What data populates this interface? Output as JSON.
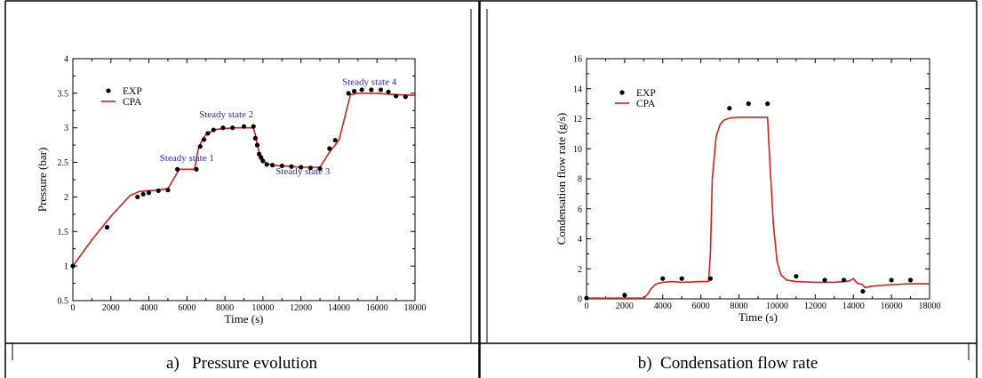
{
  "chart_data": [
    {
      "type": "line",
      "caption": "a)   Pressure evolution",
      "xlabel": "Time (s)",
      "ylabel": "Pressure (bar)",
      "xlim": [
        0,
        18000
      ],
      "ylim": [
        0.5,
        4
      ],
      "x_ticks": [
        0,
        2000,
        4000,
        6000,
        8000,
        10000,
        12000,
        14000,
        16000,
        18000
      ],
      "y_ticks": [
        0.5,
        1,
        1.5,
        2,
        2.5,
        3,
        3.5,
        4
      ],
      "y_tick_labels": [
        "0.5",
        "1",
        "1.5",
        "2",
        "2.5",
        "3",
        "3.5",
        "4"
      ],
      "grid": false,
      "legend": "top-left",
      "series": [
        {
          "name": "EXP",
          "style": "markers",
          "color": "#000000",
          "x": [
            0,
            1800,
            3400,
            3700,
            4000,
            4500,
            5000,
            5500,
            6500,
            6700,
            6900,
            7100,
            7400,
            7900,
            8400,
            9000,
            9500,
            9600,
            9700,
            9800,
            9900,
            10000,
            10200,
            10500,
            11000,
            11500,
            12000,
            12500,
            13000,
            13500,
            13800,
            14500,
            14800,
            15200,
            15700,
            16200,
            16600,
            17000,
            17500
          ],
          "y": [
            1.0,
            1.56,
            2.0,
            2.04,
            2.06,
            2.09,
            2.1,
            2.4,
            2.4,
            2.73,
            2.83,
            2.92,
            2.97,
            3.0,
            3.0,
            3.02,
            3.02,
            2.85,
            2.75,
            2.62,
            2.57,
            2.52,
            2.47,
            2.46,
            2.45,
            2.44,
            2.43,
            2.42,
            2.41,
            2.7,
            2.82,
            3.5,
            3.53,
            3.55,
            3.55,
            3.55,
            3.52,
            3.46,
            3.45
          ]
        },
        {
          "name": "CPA",
          "style": "line",
          "color": "#d42020",
          "x": [
            0,
            1000,
            2000,
            3000,
            3500,
            4000,
            4500,
            5000,
            5600,
            6000,
            6400,
            6500,
            6600,
            6800,
            7000,
            7300,
            7600,
            8000,
            8500,
            9000,
            9500,
            9600,
            9700,
            9800,
            9900,
            10000,
            10200,
            10500,
            11000,
            11500,
            12000,
            12500,
            13000,
            13500,
            14000,
            14300,
            14600,
            15000,
            16000,
            17000,
            18000
          ],
          "y": [
            1.0,
            1.38,
            1.72,
            2.02,
            2.08,
            2.09,
            2.1,
            2.12,
            2.4,
            2.4,
            2.4,
            2.55,
            2.7,
            2.82,
            2.9,
            2.95,
            2.98,
            2.99,
            3.0,
            3.0,
            3.0,
            2.9,
            2.75,
            2.65,
            2.57,
            2.52,
            2.48,
            2.46,
            2.45,
            2.44,
            2.43,
            2.43,
            2.43,
            2.65,
            2.82,
            3.15,
            3.48,
            3.5,
            3.5,
            3.48,
            3.47
          ]
        }
      ],
      "annotations": [
        {
          "text": "Steady state 1",
          "x": 6000,
          "y": 2.52,
          "anchor": "middle"
        },
        {
          "text": "Steady state 2",
          "x": 9500,
          "y": 3.15,
          "anchor": "end"
        },
        {
          "text": "Steady state 3",
          "x": 12100,
          "y": 2.33,
          "anchor": "middle"
        },
        {
          "text": "Steady state 4",
          "x": 15600,
          "y": 3.62,
          "anchor": "middle"
        }
      ]
    },
    {
      "type": "line",
      "caption": "b)  Condensation flow rate",
      "xlabel": "Time (s)",
      "ylabel": "Condensation flow rate (g/s)",
      "xlim": [
        0,
        18000
      ],
      "ylim": [
        0,
        16
      ],
      "x_ticks": [
        0,
        2000,
        4000,
        6000,
        8000,
        10000,
        12000,
        14000,
        16000,
        18000
      ],
      "y_ticks": [
        0,
        2,
        4,
        6,
        8,
        10,
        12,
        14,
        16
      ],
      "y_tick_labels": [
        "0",
        "2",
        "4",
        "6",
        "8",
        "10",
        "12",
        "14",
        "16"
      ],
      "grid": false,
      "legend": "top-left",
      "series": [
        {
          "name": "EXP",
          "style": "markers",
          "color": "#000000",
          "x": [
            0,
            2000,
            4000,
            5000,
            6500,
            7500,
            8500,
            9500,
            11000,
            12500,
            13500,
            14500,
            16000,
            17000
          ],
          "y": [
            0.05,
            0.25,
            1.35,
            1.35,
            1.35,
            12.7,
            13.0,
            13.0,
            1.5,
            1.25,
            1.25,
            0.5,
            1.25,
            1.25
          ]
        },
        {
          "name": "CPA",
          "style": "line",
          "color": "#d42020",
          "x": [
            0,
            3000,
            3200,
            3400,
            3600,
            3800,
            4000,
            4500,
            5000,
            5500,
            6000,
            6400,
            6500,
            6600,
            6800,
            7000,
            7200,
            7500,
            8000,
            9000,
            9500,
            9600,
            9800,
            10000,
            10200,
            10500,
            11000,
            12000,
            13000,
            13500,
            13800,
            14000,
            14200,
            14500,
            14600,
            15000,
            16000,
            17000,
            18000
          ],
          "y": [
            0.05,
            0.05,
            0.3,
            0.7,
            0.95,
            1.05,
            1.1,
            1.15,
            1.1,
            1.12,
            1.15,
            1.15,
            3.0,
            8.0,
            10.8,
            11.6,
            11.9,
            12.05,
            12.1,
            12.1,
            12.1,
            9.5,
            5.0,
            2.5,
            1.6,
            1.25,
            1.15,
            1.1,
            1.1,
            1.15,
            1.2,
            1.35,
            1.05,
            0.95,
            0.75,
            0.85,
            0.95,
            1.0,
            1.0
          ]
        }
      ],
      "annotations": []
    }
  ]
}
